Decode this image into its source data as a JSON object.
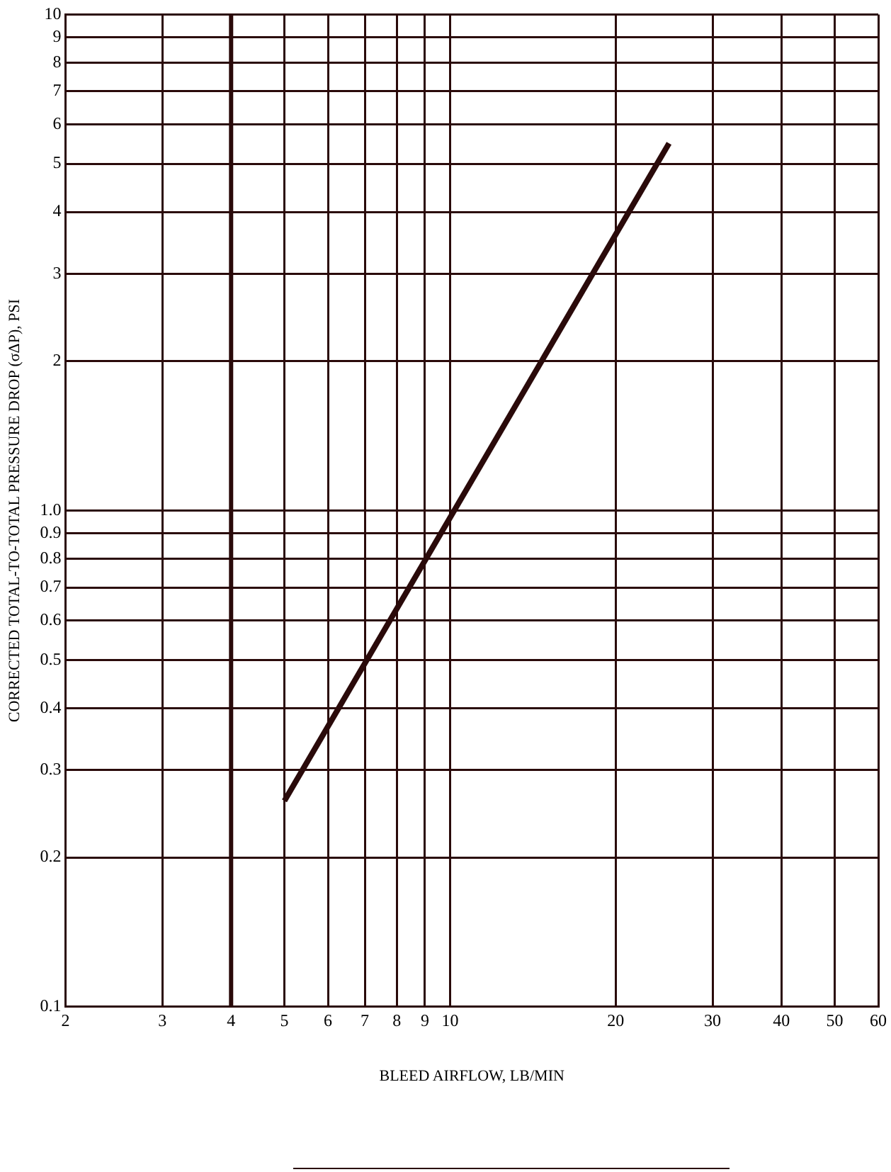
{
  "chart_data": {
    "type": "line",
    "xlabel": "BLEED AIRFLOW, LB/MIN",
    "ylabel": "CORRECTED TOTAL-TO-TOTAL PRESSURE DROP (σΔP), PSI",
    "log": "xy",
    "grid": true,
    "marker": "none",
    "line_style": "solid",
    "series": [
      {
        "color": "#2a0a0a",
        "x": [
          5,
          25
        ],
        "values": [
          0.26,
          5.5
        ]
      }
    ],
    "xlim": [
      2,
      60
    ],
    "xticks": [
      2,
      3,
      4,
      5,
      6,
      7,
      8,
      9,
      10,
      20,
      30,
      40,
      50,
      60
    ],
    "ylim": [
      0.1,
      10
    ],
    "yticks": [
      0.1,
      0.2,
      0.3,
      0.4,
      0.5,
      0.6,
      0.7,
      0.8,
      0.9,
      {
        "value": 1,
        "label": "1.0"
      },
      2,
      3,
      4,
      5,
      6,
      7,
      8,
      9,
      10
    ],
    "ref_lines": [
      {
        "axis": "x",
        "value": 4,
        "color": "#2a0a0a"
      }
    ]
  }
}
